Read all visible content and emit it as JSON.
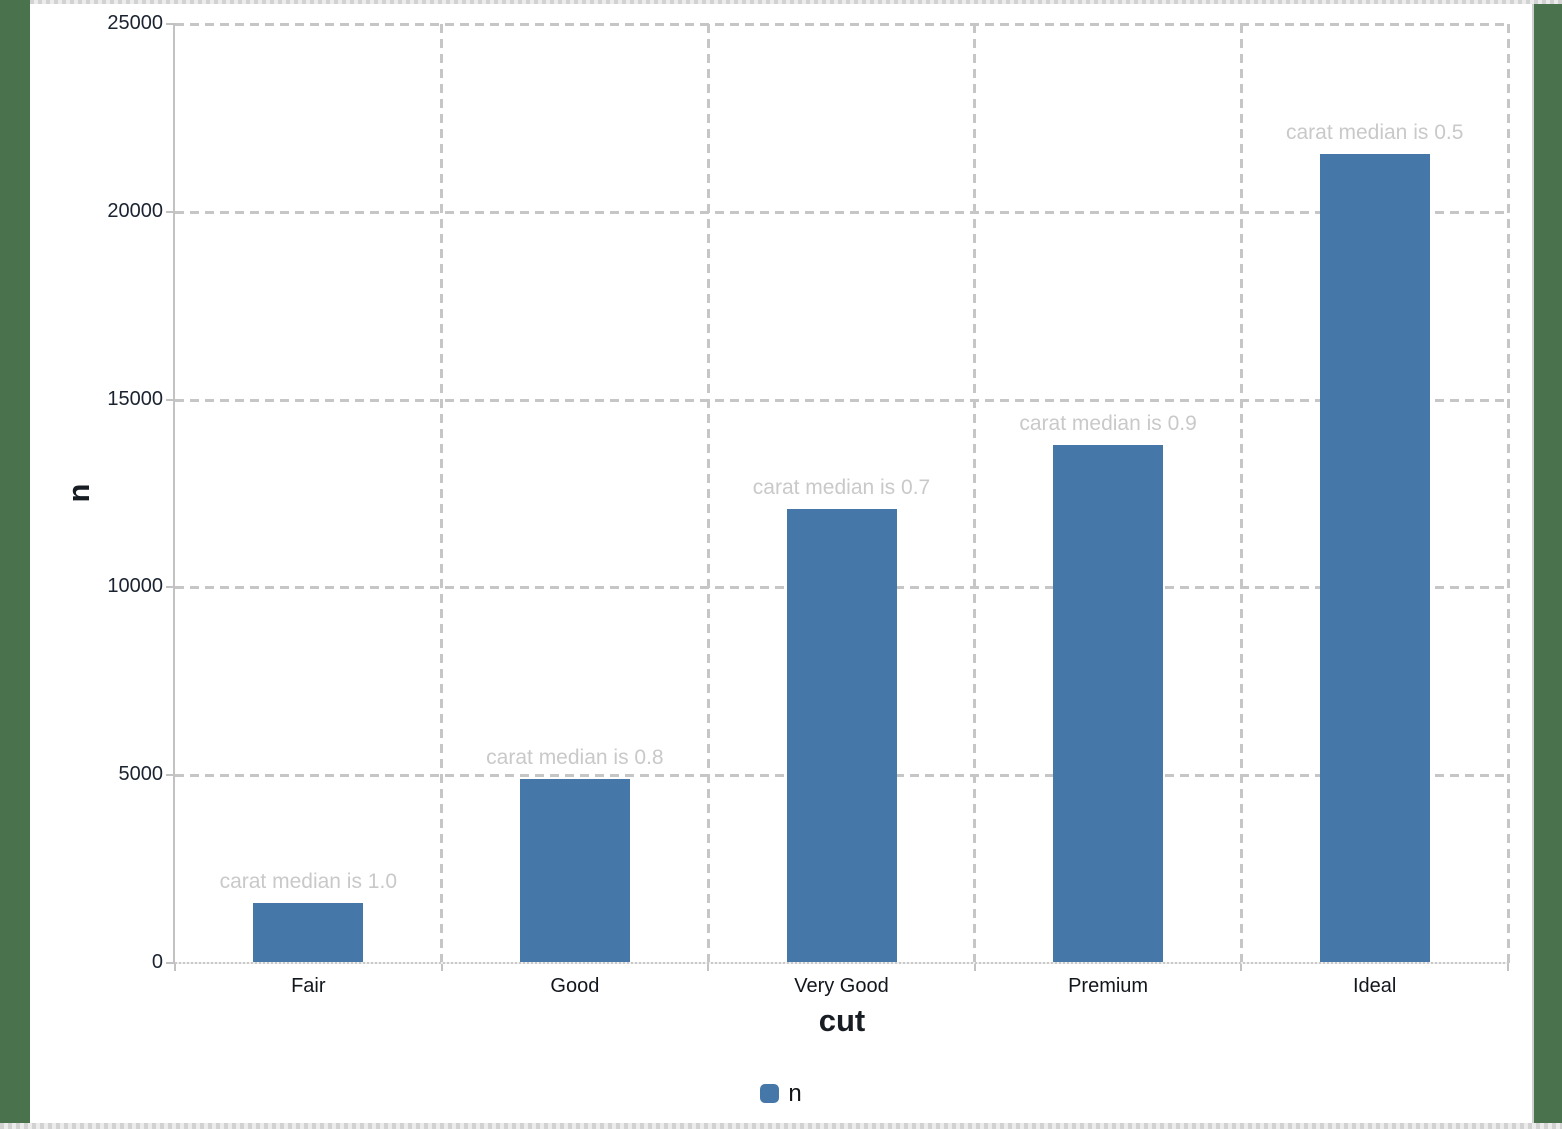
{
  "chart_data": {
    "type": "bar",
    "title": "",
    "categories": [
      "Fair",
      "Good",
      "Very Good",
      "Premium",
      "Ideal"
    ],
    "series": [
      {
        "name": "n",
        "values": [
          1610,
          4906,
          12082,
          13791,
          21551
        ]
      }
    ],
    "annotations": [
      "carat median is 1.0",
      "carat median is 0.8",
      "carat median is 0.7",
      "carat median is 0.9",
      "carat median is 0.5"
    ],
    "xlabel": "cut",
    "ylabel": "n",
    "ylim": [
      0,
      25000
    ],
    "yticks": [
      0,
      5000,
      10000,
      15000,
      20000,
      25000
    ],
    "ytick_labels": [
      "0",
      "5000",
      "10000",
      "15000",
      "20000",
      "25000"
    ],
    "grid": true,
    "legend_position": "bottom",
    "legend_items": [
      "n"
    ],
    "colors": {
      "bar": "#4577a8",
      "annotation_text": "#c9c9c9",
      "gridline": "#c6c6c6",
      "axis_line": "#c2c2c2",
      "tick_label": "#1b2330",
      "category_label": "#12161d",
      "axis_title": "#181d24",
      "desktop_background": "#4a724d"
    }
  }
}
